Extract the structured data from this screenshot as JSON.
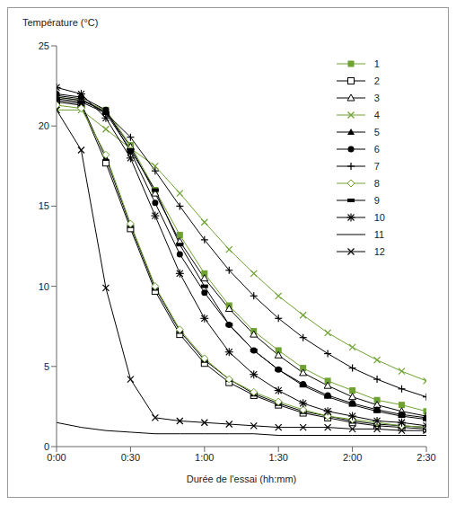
{
  "chart_data": {
    "type": "line",
    "x_label": "Durée de l'essai (hh:mm)",
    "y_label": "Température (°C)",
    "x": [
      0,
      10,
      20,
      30,
      40,
      50,
      60,
      70,
      80,
      90,
      100,
      110,
      120,
      130,
      140,
      150
    ],
    "xlim": [
      0,
      150
    ],
    "xticks": [
      {
        "value": 0,
        "label": "0:00"
      },
      {
        "value": 30,
        "label": "0:30"
      },
      {
        "value": 60,
        "label": "1:00"
      },
      {
        "value": 90,
        "label": "1:30"
      },
      {
        "value": 120,
        "label": "2:00"
      },
      {
        "value": 150,
        "label": "2:30"
      }
    ],
    "ylim": [
      0,
      25
    ],
    "yticks": [
      0,
      5,
      10,
      15,
      20,
      25
    ],
    "grid": false,
    "legend": "top-right",
    "series": [
      {
        "name": "1",
        "color": "#6ea232",
        "marker": "square",
        "values": [
          21.8,
          21.6,
          21.0,
          18.8,
          16.0,
          13.2,
          10.8,
          8.8,
          7.2,
          6.0,
          4.9,
          4.1,
          3.5,
          2.9,
          2.6,
          2.2
        ]
      },
      {
        "name": "2",
        "color": "#000000",
        "marker": "square-open",
        "values": [
          21.5,
          21.3,
          17.7,
          13.6,
          9.7,
          7.0,
          5.2,
          4.0,
          3.2,
          2.6,
          2.1,
          1.8,
          1.5,
          1.3,
          1.2,
          1.1
        ]
      },
      {
        "name": "3",
        "color": "#000000",
        "marker": "triangle-open",
        "values": [
          21.8,
          21.6,
          20.9,
          18.7,
          15.8,
          12.8,
          10.5,
          8.6,
          7.0,
          5.7,
          4.6,
          3.8,
          3.1,
          2.6,
          2.2,
          1.9
        ]
      },
      {
        "name": "4",
        "color": "#6ea232",
        "marker": "x",
        "values": [
          21.0,
          21.0,
          19.8,
          18.6,
          17.5,
          15.8,
          14.0,
          12.3,
          10.8,
          9.4,
          8.2,
          7.1,
          6.2,
          5.4,
          4.7,
          4.1
        ]
      },
      {
        "name": "5",
        "color": "#000000",
        "marker": "triangle",
        "values": [
          21.6,
          21.4,
          18.0,
          13.8,
          9.9,
          7.2,
          5.4,
          4.2,
          3.3,
          2.7,
          2.2,
          1.9,
          1.6,
          1.4,
          1.3,
          1.2
        ]
      },
      {
        "name": "6",
        "color": "#000000",
        "marker": "circle",
        "values": [
          22.0,
          21.8,
          21.0,
          18.4,
          15.2,
          12.0,
          9.6,
          7.6,
          6.0,
          4.8,
          3.9,
          3.2,
          2.7,
          2.3,
          2.0,
          1.8
        ]
      },
      {
        "name": "7",
        "color": "#000000",
        "marker": "plus",
        "values": [
          21.9,
          21.7,
          20.8,
          19.3,
          17.2,
          15.0,
          12.9,
          11.0,
          9.4,
          8.0,
          6.8,
          5.8,
          4.9,
          4.2,
          3.6,
          3.1
        ]
      },
      {
        "name": "8",
        "color": "#6ea232",
        "marker": "diamond-open",
        "values": [
          21.3,
          21.1,
          18.2,
          13.9,
          10.0,
          7.3,
          5.5,
          4.2,
          3.4,
          2.8,
          2.3,
          1.9,
          1.7,
          1.5,
          1.3,
          1.2
        ]
      },
      {
        "name": "9",
        "color": "#000000",
        "marker": "square-small",
        "values": [
          21.7,
          21.5,
          20.8,
          18.5,
          16.0,
          12.6,
          10.0,
          7.6,
          6.0,
          4.8,
          3.8,
          3.1,
          2.6,
          2.2,
          1.9,
          1.7
        ]
      },
      {
        "name": "10",
        "color": "#000000",
        "marker": "asterisk",
        "values": [
          22.4,
          22.0,
          20.5,
          18.0,
          14.4,
          10.8,
          8.0,
          5.9,
          4.5,
          3.5,
          2.7,
          2.2,
          1.9,
          1.6,
          1.5,
          1.3
        ]
      },
      {
        "name": "11",
        "color": "#000000",
        "marker": "none",
        "values": [
          1.5,
          1.2,
          1.0,
          0.9,
          0.8,
          0.8,
          0.8,
          0.8,
          0.8,
          0.7,
          0.7,
          0.7,
          0.7,
          0.7,
          0.7,
          0.7
        ]
      },
      {
        "name": "12",
        "color": "#000000",
        "marker": "x",
        "values": [
          21.0,
          18.5,
          9.9,
          4.2,
          1.8,
          1.6,
          1.5,
          1.4,
          1.3,
          1.2,
          1.2,
          1.2,
          1.1,
          1.1,
          1.0,
          1.0
        ]
      }
    ]
  }
}
